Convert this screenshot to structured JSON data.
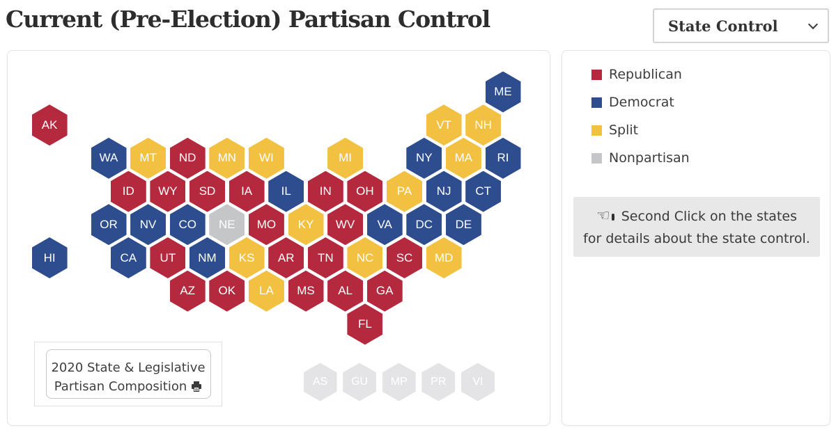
{
  "header": {
    "title": "Current (Pre-Election) Partisan Control"
  },
  "controls": {
    "view_dropdown": {
      "value": "State Control"
    }
  },
  "colors": {
    "republican": "#b4293d",
    "democrat": "#2d4d8e",
    "split": "#f3c142",
    "nonpartisan": "#c5c6c8",
    "territory": "#e4e4e6"
  },
  "legend": {
    "items": [
      {
        "label": "Republican",
        "party": "republican"
      },
      {
        "label": "Democrat",
        "party": "democrat"
      },
      {
        "label": "Split",
        "party": "split"
      },
      {
        "label": "Nonpartisan",
        "party": "nonpartisan"
      }
    ]
  },
  "info_box": {
    "icon": "☜",
    "line1": "Second Click on the states",
    "line2": "for details about the state control."
  },
  "map": {
    "print_button": {
      "line1": "2020 State & Legislative",
      "line2": "Partisan Composition",
      "icon": "printer-icon"
    },
    "states": [
      {
        "abbr": "ME",
        "party": "democrat",
        "col": 20,
        "row": 0
      },
      {
        "abbr": "VT",
        "party": "split",
        "col": 17,
        "row": 1
      },
      {
        "abbr": "NH",
        "party": "split",
        "col": 19,
        "row": 1
      },
      {
        "abbr": "AK",
        "party": "republican",
        "col": -3,
        "row": 1
      },
      {
        "abbr": "WA",
        "party": "democrat",
        "col": 0,
        "row": 2
      },
      {
        "abbr": "MT",
        "party": "split",
        "col": 2,
        "row": 2
      },
      {
        "abbr": "ND",
        "party": "republican",
        "col": 4,
        "row": 2
      },
      {
        "abbr": "MN",
        "party": "split",
        "col": 6,
        "row": 2
      },
      {
        "abbr": "WI",
        "party": "split",
        "col": 8,
        "row": 2
      },
      {
        "abbr": "MI",
        "party": "split",
        "col": 12,
        "row": 2
      },
      {
        "abbr": "NY",
        "party": "democrat",
        "col": 16,
        "row": 2
      },
      {
        "abbr": "MA",
        "party": "split",
        "col": 18,
        "row": 2
      },
      {
        "abbr": "RI",
        "party": "democrat",
        "col": 20,
        "row": 2
      },
      {
        "abbr": "ID",
        "party": "republican",
        "col": 1,
        "row": 3
      },
      {
        "abbr": "WY",
        "party": "republican",
        "col": 3,
        "row": 3
      },
      {
        "abbr": "SD",
        "party": "republican",
        "col": 5,
        "row": 3
      },
      {
        "abbr": "IA",
        "party": "republican",
        "col": 7,
        "row": 3
      },
      {
        "abbr": "IL",
        "party": "democrat",
        "col": 9,
        "row": 3
      },
      {
        "abbr": "IN",
        "party": "republican",
        "col": 11,
        "row": 3
      },
      {
        "abbr": "OH",
        "party": "republican",
        "col": 13,
        "row": 3
      },
      {
        "abbr": "PA",
        "party": "split",
        "col": 15,
        "row": 3
      },
      {
        "abbr": "NJ",
        "party": "democrat",
        "col": 17,
        "row": 3
      },
      {
        "abbr": "CT",
        "party": "democrat",
        "col": 19,
        "row": 3
      },
      {
        "abbr": "OR",
        "party": "democrat",
        "col": 0,
        "row": 4
      },
      {
        "abbr": "NV",
        "party": "democrat",
        "col": 2,
        "row": 4
      },
      {
        "abbr": "CO",
        "party": "democrat",
        "col": 4,
        "row": 4
      },
      {
        "abbr": "NE",
        "party": "nonpartisan",
        "col": 6,
        "row": 4
      },
      {
        "abbr": "MO",
        "party": "republican",
        "col": 8,
        "row": 4
      },
      {
        "abbr": "KY",
        "party": "split",
        "col": 10,
        "row": 4
      },
      {
        "abbr": "WV",
        "party": "republican",
        "col": 12,
        "row": 4
      },
      {
        "abbr": "VA",
        "party": "democrat",
        "col": 14,
        "row": 4
      },
      {
        "abbr": "DC",
        "party": "democrat",
        "col": 16,
        "row": 4
      },
      {
        "abbr": "DE",
        "party": "democrat",
        "col": 18,
        "row": 4
      },
      {
        "abbr": "HI",
        "party": "democrat",
        "col": -3,
        "row": 5
      },
      {
        "abbr": "CA",
        "party": "democrat",
        "col": 1,
        "row": 5
      },
      {
        "abbr": "UT",
        "party": "republican",
        "col": 3,
        "row": 5
      },
      {
        "abbr": "NM",
        "party": "democrat",
        "col": 5,
        "row": 5
      },
      {
        "abbr": "KS",
        "party": "split",
        "col": 7,
        "row": 5
      },
      {
        "abbr": "AR",
        "party": "republican",
        "col": 9,
        "row": 5
      },
      {
        "abbr": "TN",
        "party": "republican",
        "col": 11,
        "row": 5
      },
      {
        "abbr": "NC",
        "party": "split",
        "col": 13,
        "row": 5
      },
      {
        "abbr": "SC",
        "party": "republican",
        "col": 15,
        "row": 5
      },
      {
        "abbr": "MD",
        "party": "split",
        "col": 17,
        "row": 5
      },
      {
        "abbr": "AZ",
        "party": "republican",
        "col": 4,
        "row": 6
      },
      {
        "abbr": "OK",
        "party": "republican",
        "col": 6,
        "row": 6
      },
      {
        "abbr": "LA",
        "party": "split",
        "col": 8,
        "row": 6
      },
      {
        "abbr": "MS",
        "party": "republican",
        "col": 10,
        "row": 6
      },
      {
        "abbr": "AL",
        "party": "republican",
        "col": 12,
        "row": 6
      },
      {
        "abbr": "GA",
        "party": "republican",
        "col": 14,
        "row": 6
      },
      {
        "abbr": "FL",
        "party": "republican",
        "col": 13,
        "row": 7
      }
    ],
    "territories": [
      {
        "abbr": "AS",
        "party": "territory"
      },
      {
        "abbr": "GU",
        "party": "territory"
      },
      {
        "abbr": "MP",
        "party": "territory"
      },
      {
        "abbr": "PR",
        "party": "territory"
      },
      {
        "abbr": "VI",
        "party": "territory"
      }
    ]
  },
  "chart_data": {
    "type": "heatmap",
    "subtype": "us-hex-tile-cartogram",
    "title": "Current (Pre-Election) Partisan Control",
    "legend_entries": [
      "Republican",
      "Democrat",
      "Split",
      "Nonpartisan"
    ],
    "legend_position": "right",
    "values": {
      "AK": "Republican",
      "ME": "Democrat",
      "VT": "Split",
      "NH": "Split",
      "WA": "Democrat",
      "MT": "Split",
      "ND": "Republican",
      "MN": "Split",
      "WI": "Split",
      "MI": "Split",
      "NY": "Democrat",
      "MA": "Split",
      "RI": "Democrat",
      "ID": "Republican",
      "WY": "Republican",
      "SD": "Republican",
      "IA": "Republican",
      "IL": "Democrat",
      "IN": "Republican",
      "OH": "Republican",
      "PA": "Split",
      "NJ": "Democrat",
      "CT": "Democrat",
      "OR": "Democrat",
      "NV": "Democrat",
      "CO": "Democrat",
      "NE": "Nonpartisan",
      "MO": "Republican",
      "KY": "Split",
      "WV": "Republican",
      "VA": "Democrat",
      "DC": "Democrat",
      "DE": "Democrat",
      "HI": "Democrat",
      "CA": "Democrat",
      "UT": "Republican",
      "NM": "Democrat",
      "KS": "Split",
      "AR": "Republican",
      "TN": "Republican",
      "NC": "Split",
      "SC": "Republican",
      "MD": "Split",
      "AZ": "Republican",
      "OK": "Republican",
      "LA": "Split",
      "MS": "Republican",
      "AL": "Republican",
      "GA": "Republican",
      "FL": "Republican",
      "AS": "Territory (inactive)",
      "GU": "Territory (inactive)",
      "MP": "Territory (inactive)",
      "PR": "Territory (inactive)",
      "VI": "Territory (inactive)"
    }
  }
}
